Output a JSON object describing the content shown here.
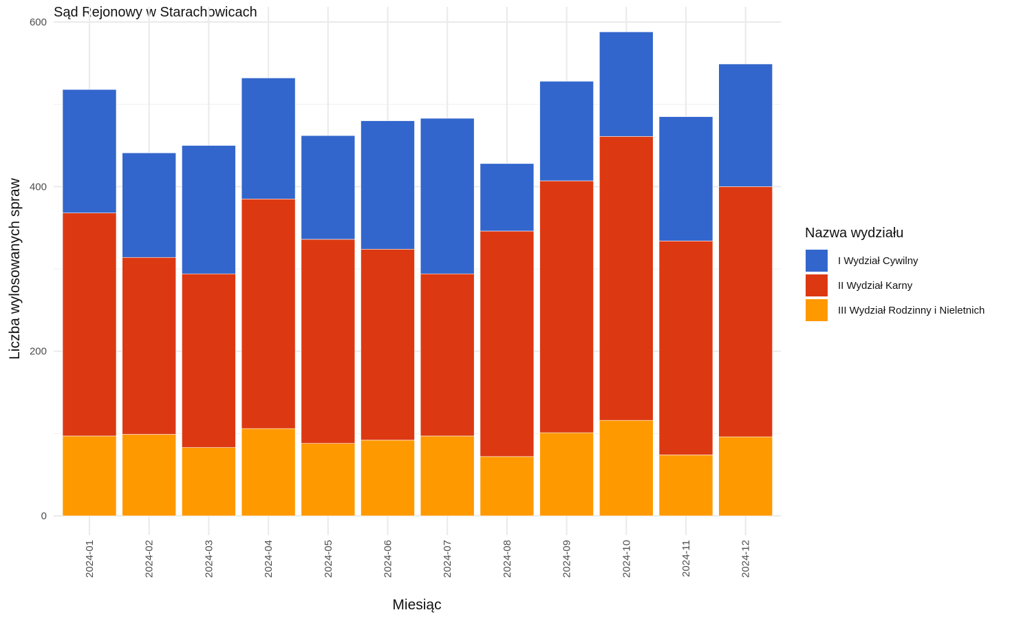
{
  "chart_data": {
    "type": "bar",
    "stacked": true,
    "title": "Sąd Rejonowy w Starachowicach",
    "xlabel": "Miesiąc",
    "ylabel": "Liczba wylosowanych spraw",
    "ylim": [
      0,
      600
    ],
    "yticks": [
      0,
      200,
      400,
      600
    ],
    "grid": true,
    "legend_title": "Nazwa wydziału",
    "legend_position": "right",
    "categories": [
      "2024-01",
      "2024-02",
      "2024-03",
      "2024-04",
      "2024-05",
      "2024-06",
      "2024-07",
      "2024-08",
      "2024-09",
      "2024-10",
      "2024-11",
      "2024-12"
    ],
    "series": [
      {
        "name": "III Wydział Rodzinny i Nieletnich",
        "color": "#FF9900",
        "values": [
          97,
          99,
          83,
          106,
          88,
          92,
          97,
          72,
          101,
          116,
          74,
          96
        ]
      },
      {
        "name": "II Wydział Karny",
        "color": "#DC3912",
        "values": [
          271,
          215,
          211,
          279,
          248,
          232,
          197,
          274,
          306,
          345,
          260,
          304
        ]
      },
      {
        "name": "I Wydział Cywilny",
        "color": "#3366CC",
        "values": [
          150,
          127,
          156,
          147,
          126,
          156,
          189,
          82,
          121,
          127,
          151,
          149
        ]
      }
    ]
  }
}
